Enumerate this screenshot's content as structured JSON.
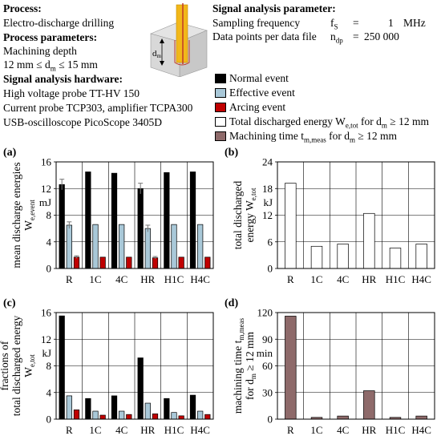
{
  "header": {
    "process_title": "Process:",
    "process": "Electro-discharge drilling",
    "params_title": "Process parameters:",
    "param1": "Machining depth",
    "param2": "12 mm ≤ d",
    "param2_sub": "m",
    "param2_end": " ≤ 15 mm",
    "hw_title": "Signal analysis hardware:",
    "hw1": "High voltage probe TT-HV 150",
    "hw2": "Current probe TCP303, amplifier TCPA300",
    "hw3": "USB-oscilloscope PicoScope 3405D",
    "sig_title": "Signal analysis parameter:",
    "sig1_label": "Sampling frequency",
    "sig1_sym": "f",
    "sig1_sub": "S",
    "sig1_eq": "=",
    "sig1_val": "1",
    "sig1_unit": "MHz",
    "sig2_label": "Data points per data file",
    "sig2_sym": "n",
    "sig2_sub": "dp",
    "sig2_eq": "=",
    "sig2_val": "250 000",
    "dm_label": "d",
    "dm_sub": "m"
  },
  "legend": [
    {
      "label": "Normal event",
      "color": "#000000"
    },
    {
      "label": "Effective event",
      "color": "#a9c8d8"
    },
    {
      "label": "Arcing event",
      "color": "#c00000"
    },
    {
      "label_a": "Total discharged energy W",
      "label_sub": "e,tot",
      "label_b": " for d",
      "label_sub2": "m",
      "label_c": " ≥ 12 mm",
      "color": "#ffffff"
    },
    {
      "label_a": "Machining time t",
      "label_sub": "m,meas",
      "label_b": " for d",
      "label_sub2": "m",
      "label_c": " ≥ 12 mm",
      "color": "#8e6a6a"
    }
  ],
  "colors": {
    "normal": "#000000",
    "effective": "#a9c8d8",
    "arcing": "#c00000",
    "total": "#ffffff",
    "time": "#8e6a6a"
  },
  "chart_data": [
    {
      "panel": "(a)",
      "type": "bar",
      "ylabel_lines": [
        "mean discharge energies",
        "W"
      ],
      "ylabel_sub": "e,event",
      "unit": "mJ",
      "categories": [
        "R",
        "1C",
        "4C",
        "HR",
        "H1C",
        "H4C"
      ],
      "yticks": [
        0,
        4,
        8,
        12,
        16
      ],
      "ylim": [
        0,
        16
      ],
      "series": [
        {
          "name": "Normal event",
          "values": [
            12.6,
            14.5,
            14.3,
            12.0,
            14.4,
            14.5
          ],
          "errors": [
            0.8,
            0,
            0,
            0.8,
            0,
            0
          ]
        },
        {
          "name": "Effective event",
          "values": [
            6.5,
            6.6,
            6.6,
            6.0,
            6.6,
            6.6
          ],
          "errors": [
            0.5,
            0,
            0,
            0.5,
            0,
            0
          ]
        },
        {
          "name": "Arcing event",
          "values": [
            1.7,
            1.7,
            1.7,
            1.6,
            1.7,
            1.7
          ],
          "errors": [
            0.2,
            0,
            0,
            0.2,
            0,
            0
          ]
        }
      ]
    },
    {
      "panel": "(b)",
      "type": "bar",
      "ylabel_lines": [
        "total discharged",
        "energy W"
      ],
      "ylabel_sub": "e,tot",
      "unit": "kJ",
      "categories": [
        "R",
        "1C",
        "4C",
        "HR",
        "H1C",
        "H4C"
      ],
      "yticks": [
        0,
        6,
        12,
        18,
        24
      ],
      "ylim": [
        0,
        24
      ],
      "series": [
        {
          "name": "Total discharged energy",
          "values": [
            19.2,
            5.0,
            5.5,
            12.4,
            4.6,
            5.5
          ]
        }
      ]
    },
    {
      "panel": "(c)",
      "type": "bar",
      "ylabel_lines": [
        "fractions of",
        "total discharged energy",
        "W"
      ],
      "ylabel_sub": "e,tot",
      "unit": "kJ",
      "categories": [
        "R",
        "1C",
        "4C",
        "HR",
        "H1C",
        "H4C"
      ],
      "yticks": [
        0,
        4,
        8,
        12,
        16
      ],
      "ylim": [
        0,
        16
      ],
      "series": [
        {
          "name": "Normal event",
          "values": [
            15.5,
            3.1,
            3.5,
            9.2,
            3.1,
            3.6
          ]
        },
        {
          "name": "Effective event",
          "values": [
            3.5,
            1.2,
            1.2,
            2.4,
            1.0,
            1.2
          ]
        },
        {
          "name": "Arcing event",
          "values": [
            1.4,
            0.6,
            0.7,
            0.8,
            0.5,
            0.7
          ]
        }
      ]
    },
    {
      "panel": "(d)",
      "type": "bar",
      "ylabel_lines": [
        "machining time t"
      ],
      "ylabel_sub": "m,meas",
      "ylabel_line2": "for d",
      "ylabel_line2_sub": "m",
      "ylabel_line2_end": " ≥ 12 mm",
      "unit": "min",
      "categories": [
        "R",
        "1C",
        "4C",
        "HR",
        "H1C",
        "H4C"
      ],
      "yticks": [
        0,
        30,
        60,
        90,
        120
      ],
      "ylim": [
        0,
        120
      ],
      "series": [
        {
          "name": "Machining time",
          "values": [
            116,
            2,
            3.5,
            32,
            2,
            3.5
          ]
        }
      ]
    }
  ]
}
